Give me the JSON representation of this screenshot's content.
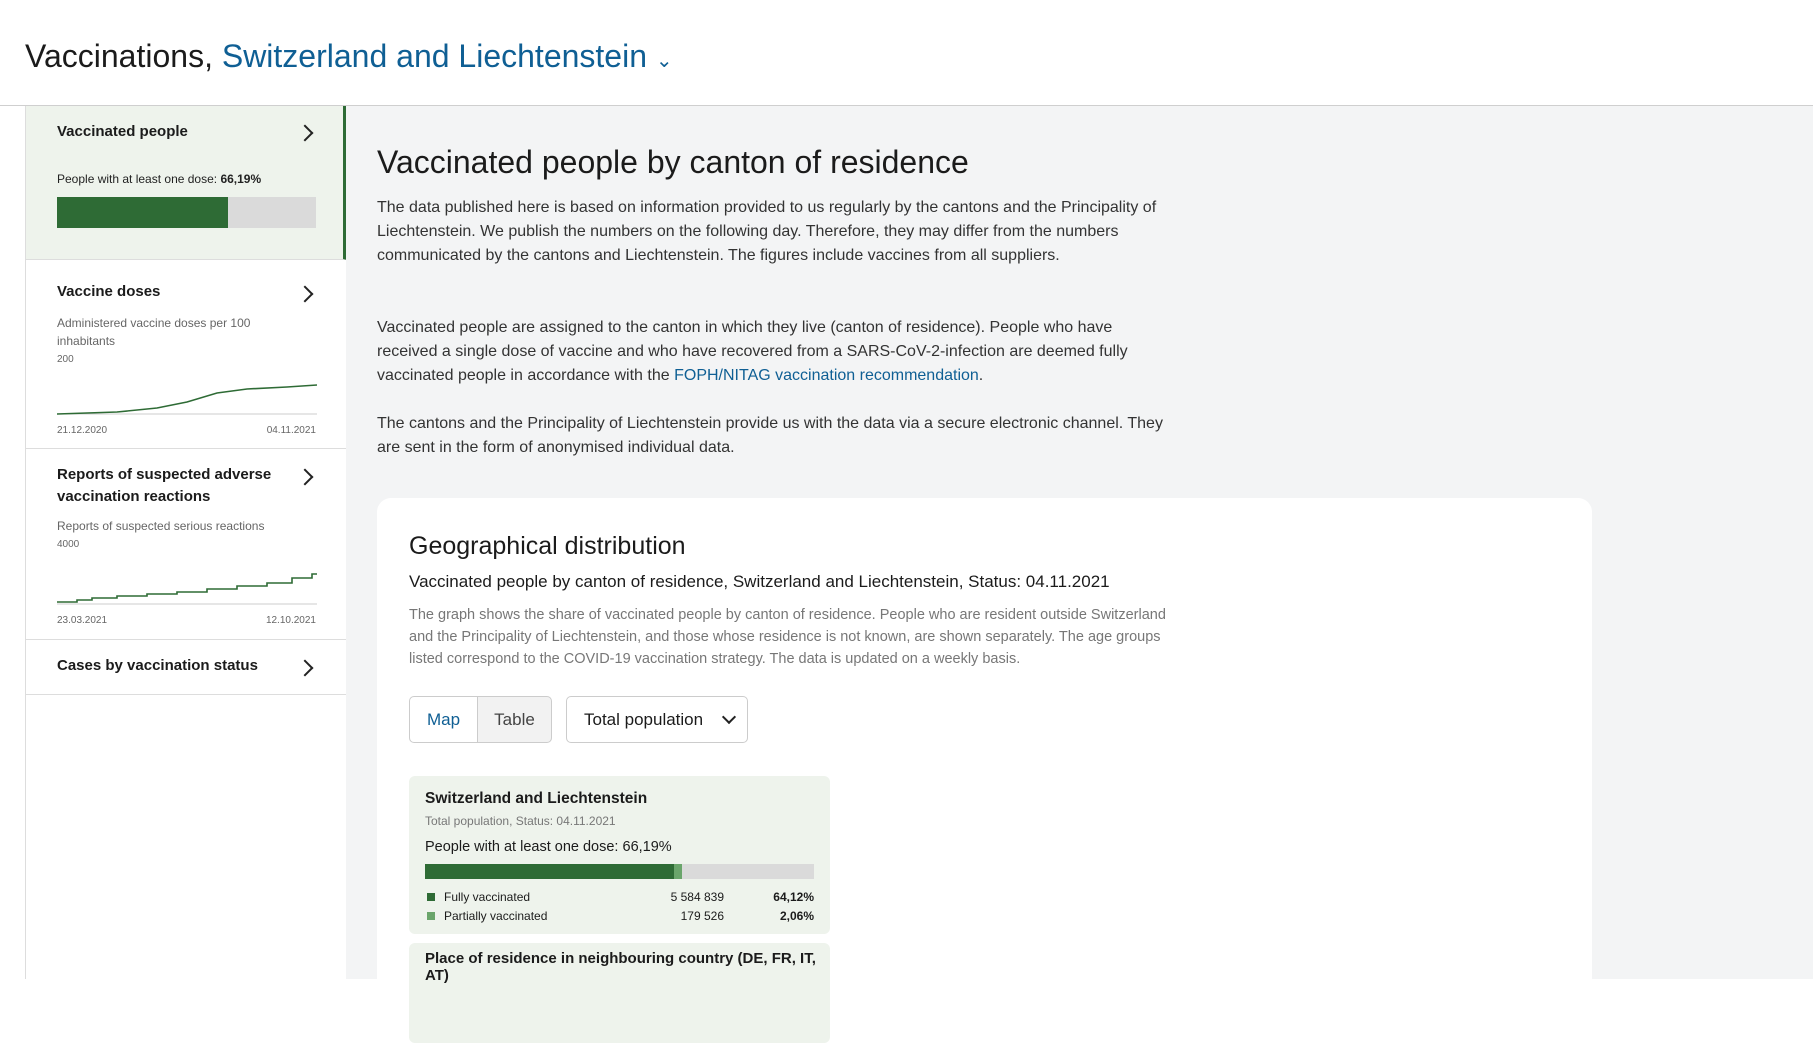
{
  "header": {
    "title": "Vaccinations,",
    "region": "Switzerland and Liechtenstein"
  },
  "sidebar": {
    "items": [
      {
        "title": "Vaccinated people",
        "text": "People with at least one dose:",
        "value": 66.19,
        "value_label": "66,19%"
      },
      {
        "title": "Vaccine doses",
        "text": "Administered vaccine doses per 100 inhabitants",
        "y_max": 200,
        "start": "21.12.2020",
        "end": "04.11.2021"
      },
      {
        "title": "Reports of suspected adverse vaccination reactions",
        "text": "Reports of suspected serious reactions",
        "y_max": 4000,
        "start": "23.03.2021",
        "end": "12.10.2021"
      },
      {
        "title": "Cases by vaccination status"
      }
    ]
  },
  "main": {
    "title": "Vaccinated people by canton of residence",
    "paragraphs": [
      {
        "text": "The data published here is based on information provided to us regularly by the cantons and the Principality of Liechtenstein. We publish the numbers on the following day. Therefore, they may differ from the numbers communicated by the cantons and Liechtenstein. The figures include vaccines from all suppliers."
      },
      {
        "text": "Vaccinated people are assigned to the canton in which they live (canton of residence). People who have received a single dose of vaccine and who have recovered from a SARS-CoV-2-infection are deemed fully vaccinated people in accordance with the",
        "link": "FOPH/NITAG vaccination recommendation",
        "end": "."
      },
      {
        "text": "The cantons and the Principality of Liechtenstein provide us with the data via a secure electronic channel. They are sent in the form of anonymised individual data."
      }
    ]
  },
  "card": {
    "title": "Geographical distribution",
    "subtitle": "Vaccinated people by canton of residence, Switzerland and Liechtenstein, Status: 04.11.2021",
    "description": "The graph shows the share of vaccinated people by canton of residence. People who are resident outside Switzerland and the Principality of Liechtenstein, and those whose residence is not known, are shown separately. The age groups listed correspond to the COVID-19 vaccination strategy. The data is updated on a weekly basis.",
    "tabs": [
      "Map",
      "Table"
    ],
    "dropdown": "Total population",
    "summary": {
      "title": "Switzerland and Liechtenstein",
      "meta": "Total population, Status: 04.11.2021",
      "headline": "People with at least one dose:",
      "headline_value": "66,19%",
      "rows": [
        {
          "label": "Fully vaccinated",
          "count": "5 584 839",
          "share": 64.12,
          "share_label": "64,12%",
          "color": "#2e6b35"
        },
        {
          "label": "Partially vaccinated",
          "count": "179 526",
          "share": 2.06,
          "share_label": "2,06%",
          "color": "#6aa56b"
        }
      ]
    },
    "next": {
      "title": "Place of residence in neighbouring country (DE, FR, IT, AT)"
    }
  }
}
